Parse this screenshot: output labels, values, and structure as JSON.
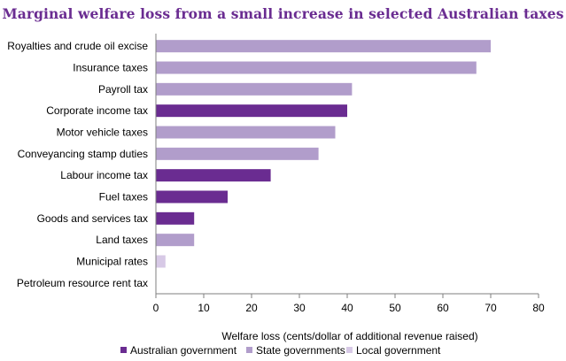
{
  "chart_data": {
    "type": "bar",
    "orientation": "horizontal",
    "title": "Marginal welfare loss from a small increase in selected Australian taxes",
    "xlabel": "Welfare loss (cents/dollar of additional revenue raised)",
    "ylabel": "",
    "xlim": [
      0,
      80
    ],
    "xticks": [
      0,
      10,
      20,
      30,
      40,
      50,
      60,
      70,
      80
    ],
    "grid": false,
    "legend_position": "bottom",
    "legend": [
      {
        "name": "Australian government",
        "color": "#6a2c91"
      },
      {
        "name": "State governments",
        "color": "#b19dcb"
      },
      {
        "name": "Local government",
        "color": "#d7c9e6"
      }
    ],
    "bars": [
      {
        "category": "Royalties and crude oil excise",
        "value": 70,
        "level": "State governments",
        "color": "#b19dcb"
      },
      {
        "category": "Insurance taxes",
        "value": 67,
        "level": "State governments",
        "color": "#b19dcb"
      },
      {
        "category": "Payroll tax",
        "value": 41,
        "level": "State governments",
        "color": "#b19dcb"
      },
      {
        "category": "Corporate income tax",
        "value": 40,
        "level": "Australian government",
        "color": "#6a2c91"
      },
      {
        "category": "Motor vehicle taxes",
        "value": 37.5,
        "level": "State governments",
        "color": "#b19dcb"
      },
      {
        "category": "Conveyancing stamp duties",
        "value": 34,
        "level": "State governments",
        "color": "#b19dcb"
      },
      {
        "category": "Labour income tax",
        "value": 24,
        "level": "Australian government",
        "color": "#6a2c91"
      },
      {
        "category": "Fuel taxes",
        "value": 15,
        "level": "Australian government",
        "color": "#6a2c91"
      },
      {
        "category": "Goods and services tax",
        "value": 8,
        "level": "Australian government",
        "color": "#6a2c91"
      },
      {
        "category": "Land taxes",
        "value": 8,
        "level": "State governments",
        "color": "#b19dcb"
      },
      {
        "category": "Municipal rates",
        "value": 2,
        "level": "Local government",
        "color": "#d7c9e6"
      },
      {
        "category": "Petroleum resource rent tax",
        "value": 0,
        "level": "Australian government",
        "color": "#6a2c91"
      }
    ]
  }
}
